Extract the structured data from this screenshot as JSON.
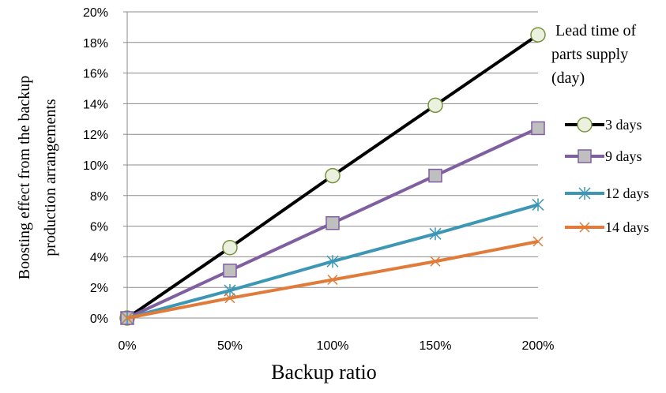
{
  "chart_data": {
    "type": "line",
    "xlabel": "Backup ratio",
    "ylabel": [
      "Boosting effect from  the backup",
      "production  arrangements"
    ],
    "x": [
      0,
      50,
      100,
      150,
      200
    ],
    "x_tick_labels": [
      "0%",
      "50%",
      "100%",
      "150%",
      "200%"
    ],
    "xlim": [
      0,
      200
    ],
    "ylim": [
      0,
      20
    ],
    "y_tick_labels": [
      "0%",
      "2%",
      "4%",
      "6%",
      "8%",
      "10%",
      "12%",
      "14%",
      "16%",
      "18%",
      "20%"
    ],
    "grid": "horizontal",
    "legend_position": "right",
    "legend_title": [
      "Lead time of",
      "parts supply",
      "(day)"
    ],
    "series": [
      {
        "name": "3 days",
        "values": [
          0,
          4.6,
          9.3,
          13.9,
          18.5
        ],
        "color": "#000000",
        "marker": "circle",
        "marker_fill": "#ebf1de",
        "marker_stroke": "#76923c"
      },
      {
        "name": "9 days",
        "values": [
          0,
          3.1,
          6.2,
          9.3,
          12.4
        ],
        "color": "#7f5fa0",
        "marker": "square",
        "marker_fill": "#bfbfbf",
        "marker_stroke": "#7f5fa0"
      },
      {
        "name": "12 days",
        "values": [
          0,
          1.8,
          3.7,
          5.5,
          7.4
        ],
        "color": "#3c96b4",
        "marker": "asterisk",
        "marker_fill": "none",
        "marker_stroke": "#3c96b4"
      },
      {
        "name": "14 days",
        "values": [
          0,
          1.3,
          2.5,
          3.7,
          5.0
        ],
        "color": "#e07b39",
        "marker": "x",
        "marker_fill": "none",
        "marker_stroke": "#e07b39"
      }
    ]
  }
}
